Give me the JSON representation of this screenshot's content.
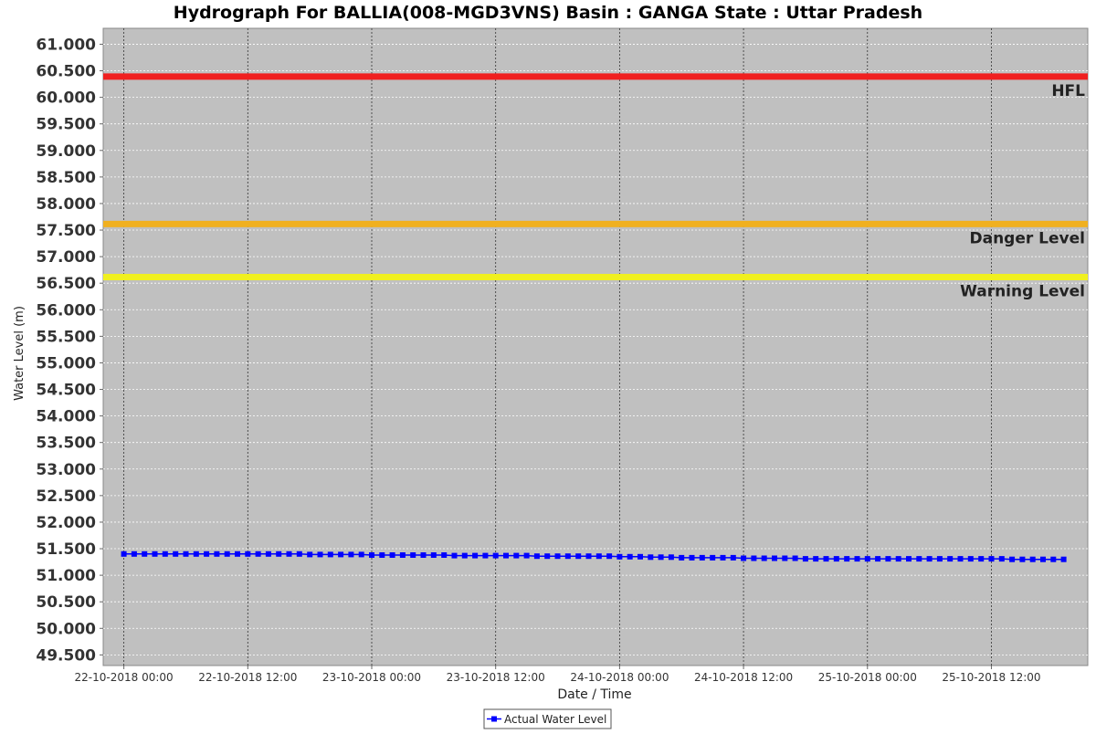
{
  "chart_data": {
    "type": "line",
    "title": "Hydrograph For BALLIA(008-MGD3VNS) Basin : GANGA State : Uttar Pradesh",
    "xlabel": "Date / Time",
    "ylabel": "Water Level (m)",
    "ylim": [
      49.3,
      61.3
    ],
    "yticks": [
      "49.500",
      "50.000",
      "50.500",
      "51.000",
      "51.500",
      "52.000",
      "52.500",
      "53.000",
      "53.500",
      "54.000",
      "54.500",
      "55.000",
      "55.500",
      "56.000",
      "56.500",
      "57.000",
      "57.500",
      "58.000",
      "58.500",
      "59.000",
      "59.500",
      "60.000",
      "60.500",
      "61.000"
    ],
    "xlim": [
      "2018-10-21T22:00",
      "2018-10-25T21:20"
    ],
    "xticks": [
      {
        "t": "2018-10-22T00:00",
        "label": "22-10-2018 00:00"
      },
      {
        "t": "2018-10-22T12:00",
        "label": "22-10-2018 12:00"
      },
      {
        "t": "2018-10-23T00:00",
        "label": "23-10-2018 00:00"
      },
      {
        "t": "2018-10-23T12:00",
        "label": "23-10-2018 12:00"
      },
      {
        "t": "2018-10-24T00:00",
        "label": "24-10-2018 00:00"
      },
      {
        "t": "2018-10-24T12:00",
        "label": "24-10-2018 12:00"
      },
      {
        "t": "2018-10-25T00:00",
        "label": "25-10-2018 00:00"
      },
      {
        "t": "2018-10-25T12:00",
        "label": "25-10-2018 12:00"
      }
    ],
    "grid": true,
    "legend_position": "bottom",
    "background_color": "#c0c0c0",
    "thresholds": [
      {
        "name": "HFL",
        "value": 60.39,
        "color": "#f02020"
      },
      {
        "name": "Danger Level",
        "value": 57.615,
        "color": "#f0b020"
      },
      {
        "name": "Warning Level",
        "value": 56.615,
        "color": "#f0f020"
      }
    ],
    "series": [
      {
        "name": "Actual Water Level",
        "color": "#0000ff",
        "start": "2018-10-22T00:00",
        "interval_hours": 1,
        "values": [
          51.4,
          51.4,
          51.4,
          51.4,
          51.4,
          51.4,
          51.4,
          51.4,
          51.4,
          51.4,
          51.4,
          51.4,
          51.4,
          51.4,
          51.4,
          51.4,
          51.4,
          51.4,
          51.39,
          51.39,
          51.39,
          51.39,
          51.39,
          51.39,
          51.38,
          51.38,
          51.38,
          51.38,
          51.38,
          51.38,
          51.38,
          51.38,
          51.37,
          51.37,
          51.37,
          51.37,
          51.37,
          51.37,
          51.37,
          51.37,
          51.36,
          51.36,
          51.36,
          51.36,
          51.36,
          51.36,
          51.36,
          51.36,
          51.35,
          51.35,
          51.35,
          51.34,
          51.34,
          51.34,
          51.33,
          51.33,
          51.33,
          51.33,
          51.33,
          51.33,
          51.32,
          51.32,
          51.32,
          51.32,
          51.32,
          51.32,
          51.31,
          51.31,
          51.31,
          51.31,
          51.31,
          51.31,
          51.31,
          51.31,
          51.31,
          51.31,
          51.31,
          51.31,
          51.31,
          51.31,
          51.31,
          51.31,
          51.31,
          51.31,
          51.31,
          51.31,
          51.3,
          51.3,
          51.3,
          51.3,
          51.3,
          51.3
        ]
      }
    ]
  }
}
